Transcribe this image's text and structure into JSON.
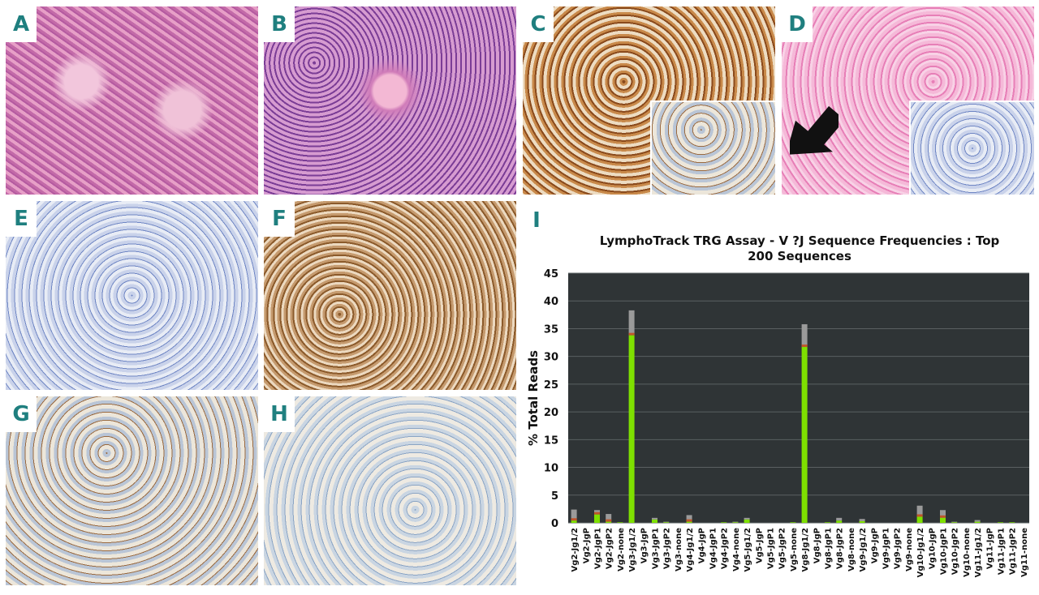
{
  "panels": [
    {
      "label": "A",
      "stain": "H&E low power"
    },
    {
      "label": "B",
      "stain": "H&E high power"
    },
    {
      "label": "C",
      "stain": "brown immunostain with inset"
    },
    {
      "label": "D",
      "stain": "pink stain with arrow and blue inset"
    },
    {
      "label": "E",
      "stain": "negative immunostain"
    },
    {
      "label": "F",
      "stain": "nuclear brown immunostain"
    },
    {
      "label": "G",
      "stain": "scattered brown nuclei"
    },
    {
      "label": "H",
      "stain": "negative immunostain"
    },
    {
      "label": "I",
      "stain": ""
    }
  ],
  "chart_data": {
    "type": "bar",
    "stacked": true,
    "title": "LymphoTrack TRG Assay - V ?J Sequence Frequencies : Top 200 Sequences",
    "title_lines": [
      "LymphoTrack TRG Assay - V ?J Sequence Frequencies : Top",
      "200 Sequences"
    ],
    "xlabel": "",
    "ylabel": "% Total Reads",
    "ylim": [
      0,
      45
    ],
    "yticks": [
      0,
      5,
      10,
      15,
      20,
      25,
      30,
      35,
      40,
      45
    ],
    "grid": true,
    "background": "#2f3436",
    "bar_color": "#7ee000",
    "categories": [
      "Vg2-Jg1/2",
      "Vg2-JgP",
      "Vg2-JgP1",
      "Vg2-JgP2",
      "Vg2-none",
      "Vg3-Jg1/2",
      "Vg3-JgP",
      "Vg3-JgP1",
      "Vg3-JgP2",
      "Vg3-none",
      "Vg4-Jg1/2",
      "Vg4-JgP",
      "Vg4-JgP1",
      "Vg4-JgP2",
      "Vg4-none",
      "Vg5-Jg1/2",
      "Vg5-JgP",
      "Vg5-JgP1",
      "Vg5-JgP2",
      "Vg5-none",
      "Vg8-Jg1/2",
      "Vg8-JgP",
      "Vg8-JgP1",
      "Vg8-JgP2",
      "Vg8-none",
      "Vg9-Jg1/2",
      "Vg9-JgP",
      "Vg9-JgP1",
      "Vg9-JgP2",
      "Vg9-none",
      "Vg10-Jg1/2",
      "Vg10-JgP",
      "Vg10-JgP1",
      "Vg10-JgP2",
      "Vg10-none",
      "Vg11-Jg1/2",
      "Vg11-JgP",
      "Vg11-JgP1",
      "Vg11-JgP2",
      "Vg11-none"
    ],
    "total": [
      2.4,
      0,
      2.3,
      1.6,
      0.1,
      38.3,
      0,
      0.9,
      0.2,
      0,
      1.4,
      0,
      0,
      0.1,
      0.2,
      0.9,
      0,
      0,
      0,
      0.1,
      35.8,
      0,
      0.1,
      0.9,
      0,
      0.7,
      0,
      0,
      0,
      0,
      3.1,
      0,
      2.3,
      0.2,
      0,
      0.5,
      0,
      0.1,
      0.1,
      0
    ],
    "main_clone": [
      0.4,
      0,
      1.5,
      0.2,
      0.1,
      33.8,
      0,
      0.6,
      0.1,
      0,
      0.2,
      0,
      0,
      0.1,
      0.1,
      0.6,
      0,
      0,
      0,
      0.1,
      31.7,
      0,
      0.1,
      0.4,
      0,
      0.3,
      0,
      0,
      0,
      0,
      1.1,
      0,
      0.9,
      0.1,
      0,
      0.2,
      0,
      0.1,
      0.1,
      0
    ]
  }
}
